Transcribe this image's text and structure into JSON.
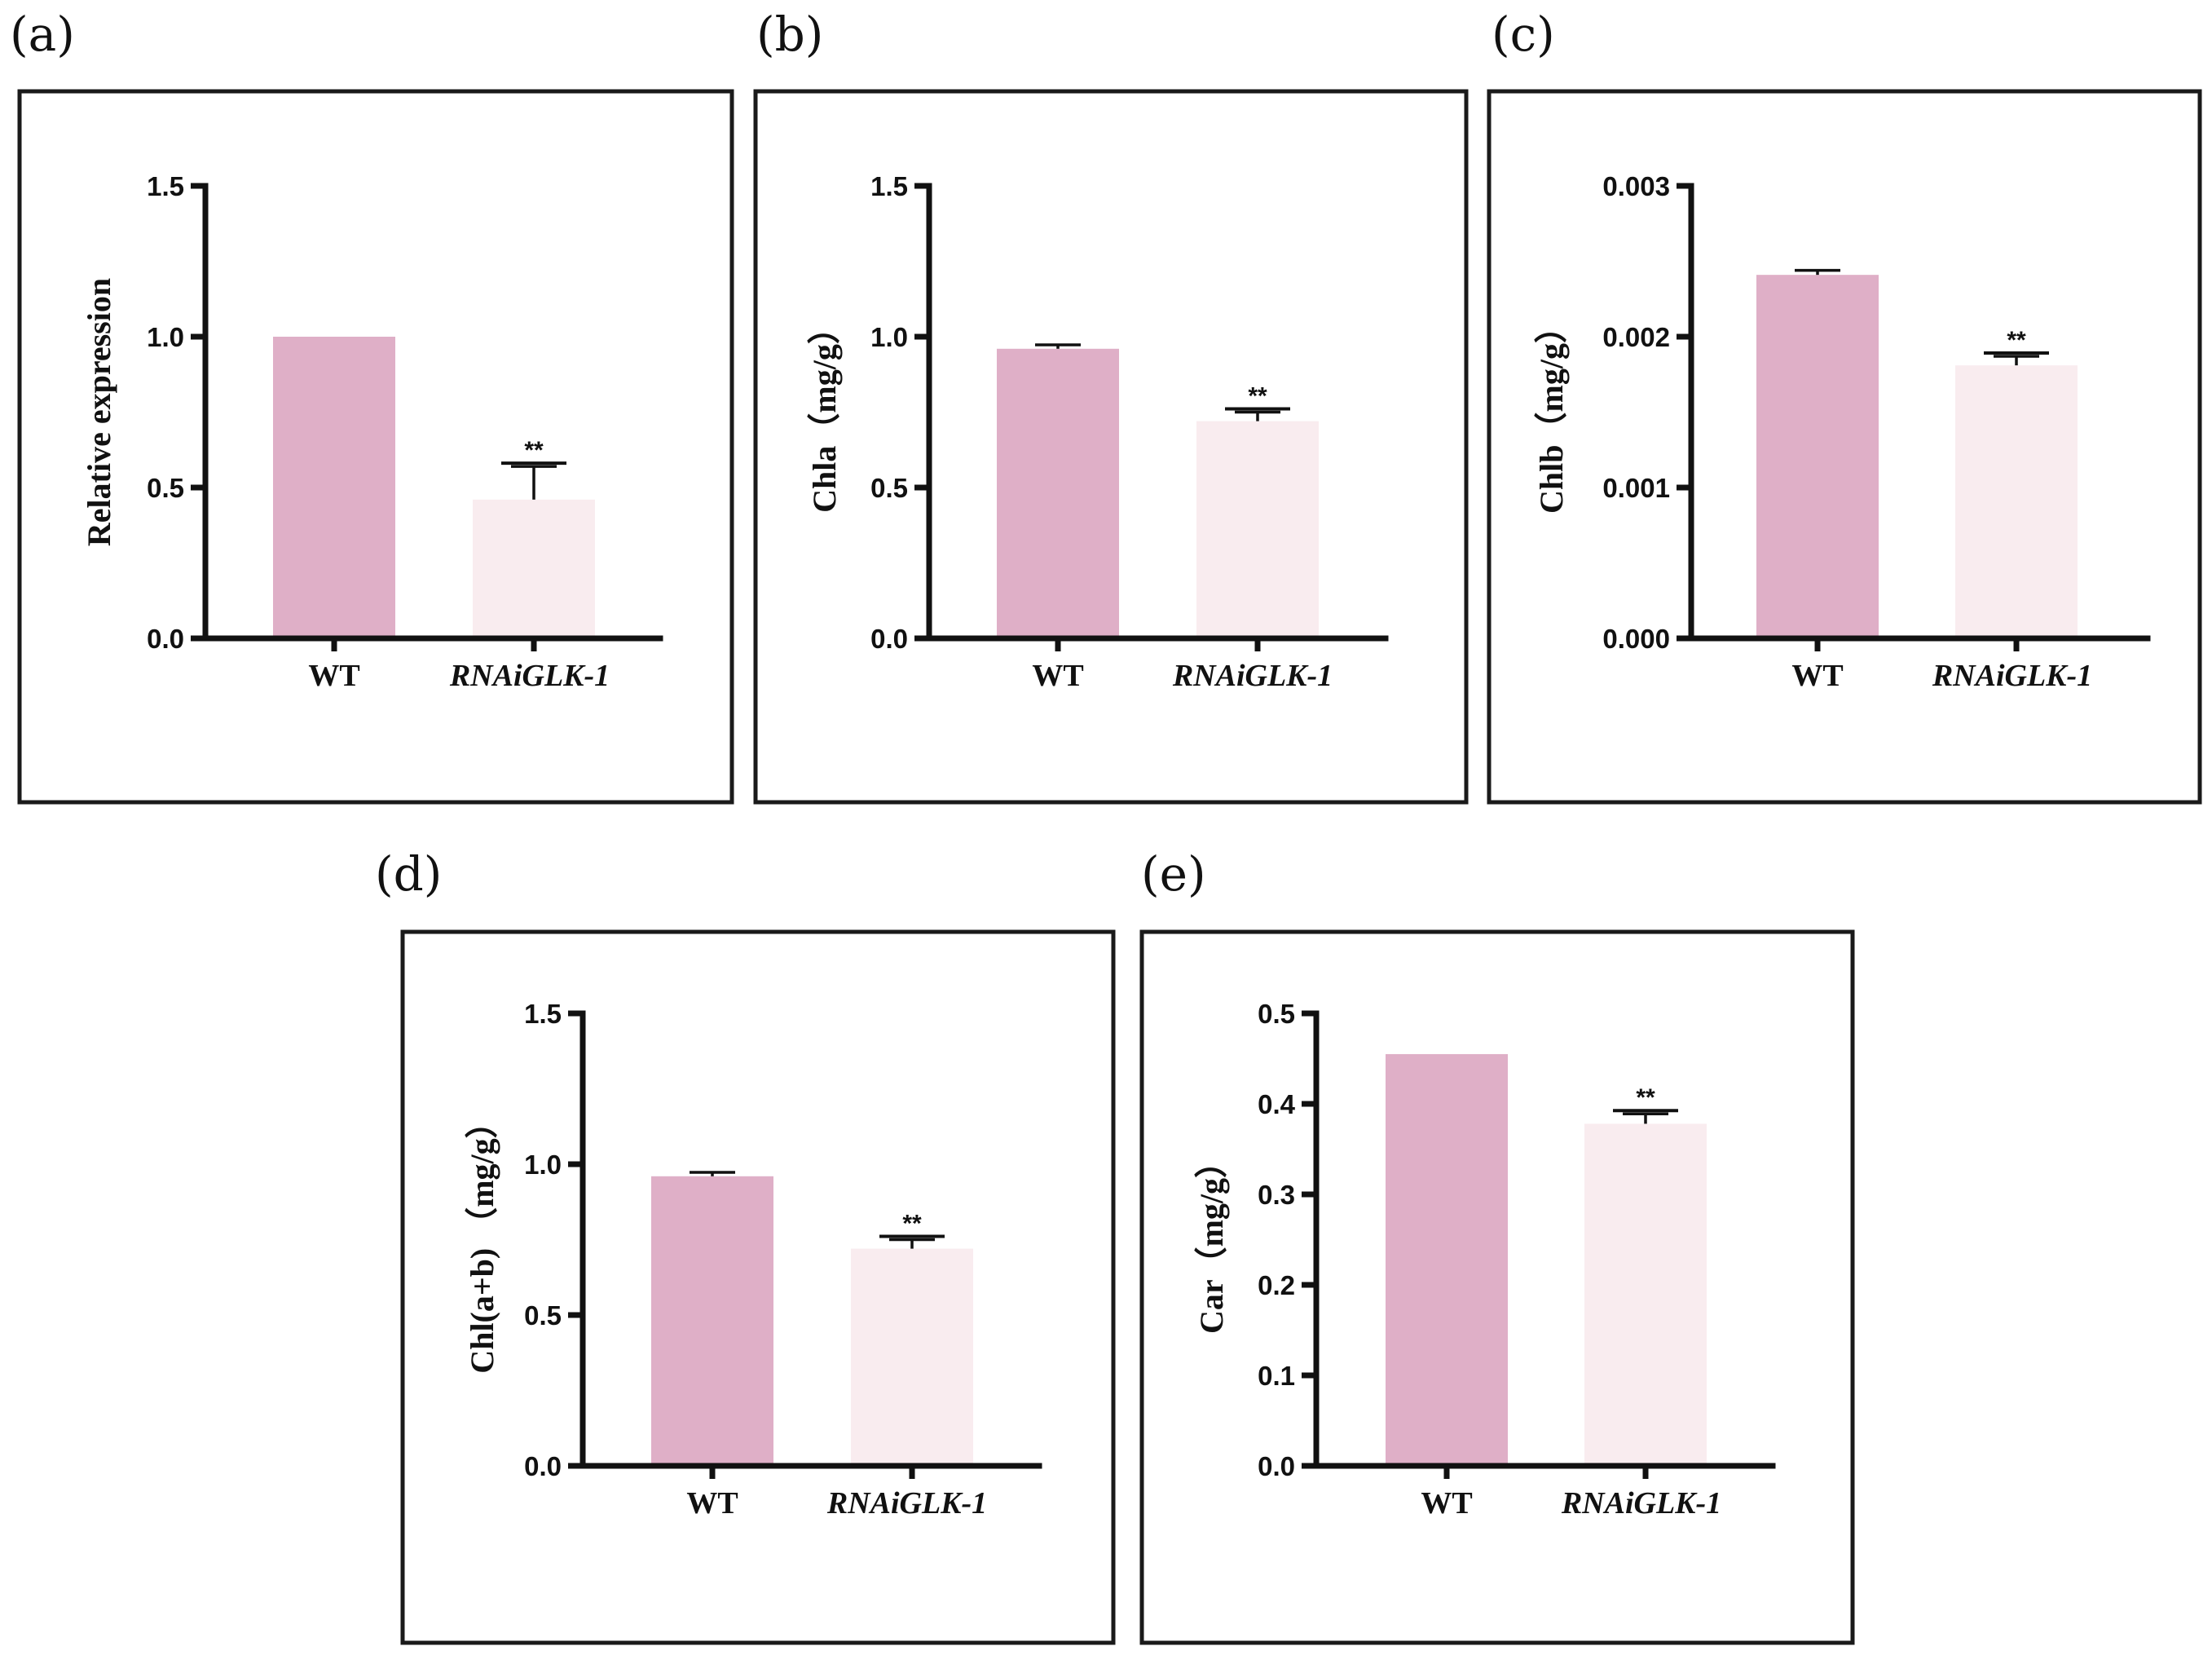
{
  "figure": {
    "colors": {
      "wt": "#dfafc7",
      "rnai": "#f9ecef",
      "axis": "#111111"
    }
  },
  "chart_data": [
    {
      "panel": "(a)",
      "type": "bar",
      "categories": [
        "WT",
        "RNAiGLK-1"
      ],
      "italic_categories": [
        false,
        true
      ],
      "values": [
        1.0,
        0.46
      ],
      "error": [
        0.0,
        0.11
      ],
      "significance": [
        "",
        "**"
      ],
      "ylabel": "Relative expression",
      "ylim": [
        0,
        1.5
      ],
      "ticks": [
        0,
        0.5,
        1.0,
        1.5
      ],
      "tick_labels": [
        "0.0",
        "0.5",
        "1.0",
        "1.5"
      ]
    },
    {
      "panel": "(b)",
      "type": "bar",
      "categories": [
        "WT",
        "RNAiGLK-1"
      ],
      "italic_categories": [
        false,
        true
      ],
      "values": [
        0.96,
        0.72
      ],
      "error": [
        0.013,
        0.03
      ],
      "significance": [
        "",
        "**"
      ],
      "ylabel": "Chla（mg/g）",
      "ylim": [
        0,
        1.5
      ],
      "ticks": [
        0,
        0.5,
        1.0,
        1.5
      ],
      "tick_labels": [
        "0.0",
        "0.5",
        "1.0",
        "1.5"
      ]
    },
    {
      "panel": "(c)",
      "type": "bar",
      "categories": [
        "WT",
        "RNAiGLK-1"
      ],
      "italic_categories": [
        false,
        true
      ],
      "values": [
        0.00241,
        0.00181
      ],
      "error": [
        3e-05,
        6e-05
      ],
      "significance": [
        "",
        "**"
      ],
      "ylabel": "Chlb（mg/g）",
      "ylim": [
        0,
        0.003
      ],
      "ticks": [
        0,
        0.001,
        0.002,
        0.003
      ],
      "tick_labels": [
        "0.000",
        "0.001",
        "0.002",
        "0.003"
      ]
    },
    {
      "panel": "(d)",
      "type": "bar",
      "categories": [
        "WT",
        "RNAiGLK-1"
      ],
      "italic_categories": [
        false,
        true
      ],
      "values": [
        0.96,
        0.72
      ],
      "error": [
        0.013,
        0.03
      ],
      "significance": [
        "",
        "**"
      ],
      "ylabel": "Chl(a+b) （mg/g）",
      "ylim": [
        0,
        1.5
      ],
      "ticks": [
        0,
        0.5,
        1.0,
        1.5
      ],
      "tick_labels": [
        "0.0",
        "0.5",
        "1.0",
        "1.5"
      ]
    },
    {
      "panel": "(e)",
      "type": "bar",
      "categories": [
        "WT",
        "RNAiGLK-1"
      ],
      "italic_categories": [
        false,
        true
      ],
      "values": [
        0.455,
        0.378
      ],
      "error": [
        0.0,
        0.011
      ],
      "significance": [
        "",
        "**"
      ],
      "ylabel": "Car（mg/g）",
      "ylim": [
        0,
        0.5
      ],
      "ticks": [
        0,
        0.1,
        0.2,
        0.3,
        0.4,
        0.5
      ],
      "tick_labels": [
        "0.0",
        "0.1",
        "0.2",
        "0.3",
        "0.4",
        "0.5"
      ]
    }
  ]
}
